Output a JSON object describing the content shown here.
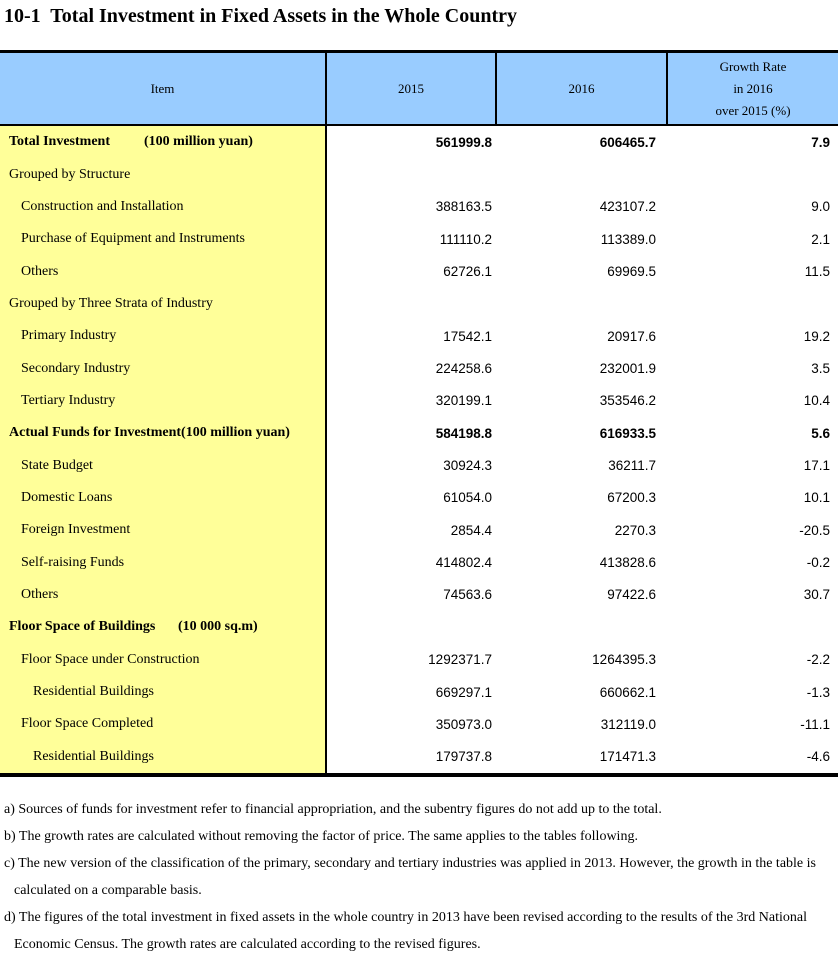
{
  "title": "10-1  Total Investment in Fixed Assets in the Whole Country",
  "colors": {
    "header_bg": "#99CCFF",
    "item_column_bg": "#FFFF99",
    "border": "#000000"
  },
  "table": {
    "headers": {
      "item": "Item",
      "y2015": "2015",
      "y2016": "2016",
      "growth_lines": [
        "Growth Rate",
        "in 2016",
        "over 2015 (%)"
      ]
    },
    "rows": [
      {
        "label": "Total Investment",
        "unit": "(100 million yuan)",
        "bold": true,
        "indent": 0,
        "y2015": "561999.8",
        "y2016": "606465.7",
        "growth": "7.9"
      },
      {
        "label": "Grouped by Structure",
        "bold": false,
        "indent": 0,
        "y2015": "",
        "y2016": "",
        "growth": ""
      },
      {
        "label": "Construction and Installation",
        "bold": false,
        "indent": 1,
        "y2015": "388163.5",
        "y2016": "423107.2",
        "growth": "9.0"
      },
      {
        "label": "Purchase of Equipment and Instruments",
        "bold": false,
        "indent": 1,
        "y2015": "111110.2",
        "y2016": "113389.0",
        "growth": "2.1"
      },
      {
        "label": "Others",
        "bold": false,
        "indent": 1,
        "y2015": "62726.1",
        "y2016": "69969.5",
        "growth": "11.5"
      },
      {
        "label": "Grouped by Three Strata of Industry",
        "bold": false,
        "indent": 0,
        "y2015": "",
        "y2016": "",
        "growth": ""
      },
      {
        "label": "Primary Industry",
        "bold": false,
        "indent": 1,
        "y2015": "17542.1",
        "y2016": "20917.6",
        "growth": "19.2"
      },
      {
        "label": "Secondary Industry",
        "bold": false,
        "indent": 1,
        "y2015": "224258.6",
        "y2016": "232001.9",
        "growth": "3.5"
      },
      {
        "label": "Tertiary Industry",
        "bold": false,
        "indent": 1,
        "y2015": "320199.1",
        "y2016": "353546.2",
        "growth": "10.4"
      },
      {
        "label": "Actual Funds for Investment(100 million yuan)",
        "bold": true,
        "indent": 0,
        "y2015": "584198.8",
        "y2016": "616933.5",
        "growth": "5.6"
      },
      {
        "label": "State Budget",
        "bold": false,
        "indent": 1,
        "y2015": "30924.3",
        "y2016": "36211.7",
        "growth": "17.1"
      },
      {
        "label": "Domestic Loans",
        "bold": false,
        "indent": 1,
        "y2015": "61054.0",
        "y2016": "67200.3",
        "growth": "10.1"
      },
      {
        "label": "Foreign Investment",
        "bold": false,
        "indent": 1,
        "y2015": "2854.4",
        "y2016": "2270.3",
        "growth": "-20.5"
      },
      {
        "label": "Self-raising Funds",
        "bold": false,
        "indent": 1,
        "y2015": "414802.4",
        "y2016": "413828.6",
        "growth": "-0.2"
      },
      {
        "label": "Others",
        "bold": false,
        "indent": 1,
        "y2015": "74563.6",
        "y2016": "97422.6",
        "growth": "30.7"
      },
      {
        "label": "Floor Space of Buildings",
        "unit": "(10 000 sq.m)",
        "bold": true,
        "indent": 0,
        "y2015": "",
        "y2016": "",
        "growth": ""
      },
      {
        "label": "Floor Space under Construction",
        "bold": false,
        "indent": 1,
        "y2015": "1292371.7",
        "y2016": "1264395.3",
        "growth": "-2.2"
      },
      {
        "label": "Residential Buildings",
        "bold": false,
        "indent": 2,
        "y2015": "669297.1",
        "y2016": "660662.1",
        "growth": "-1.3"
      },
      {
        "label": "Floor Space Completed",
        "bold": false,
        "indent": 1,
        "y2015": "350973.0",
        "y2016": "312119.0",
        "growth": "-11.1"
      },
      {
        "label": "Residential Buildings",
        "bold": false,
        "indent": 2,
        "y2015": "179737.8",
        "y2016": "171471.3",
        "growth": "-4.6"
      }
    ]
  },
  "footnotes": [
    {
      "lines": [
        "a) Sources of funds for investment refer to financial appropriation, and the subentry figures do not add up to the total."
      ]
    },
    {
      "lines": [
        "b) The growth rates are calculated without removing the factor of price. The same applies to the tables following."
      ]
    },
    {
      "lines": [
        "c) The new version of the classification of the primary, secondary and tertiary industries was applied in 2013. However, the growth in the table is",
        "calculated on a comparable basis."
      ]
    },
    {
      "lines": [
        "d) The figures of  the total investment in fixed assets in the whole country in 2013 have been revised according to the results of the 3rd National",
        "Economic Census. The growth rates are calculated according to the revised figures."
      ]
    }
  ]
}
